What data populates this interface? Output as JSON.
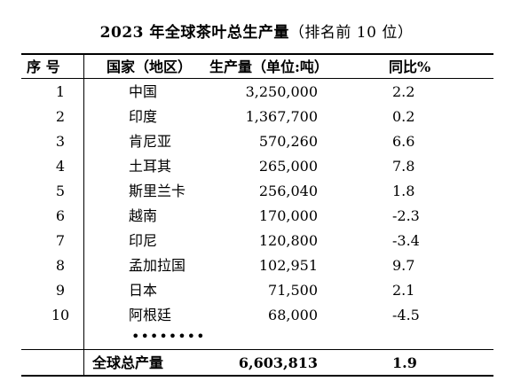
{
  "title": "2023 年全球茶叶总生产量",
  "subtitle": "（排名前 10 位）",
  "headers": {
    "no": "序 号",
    "country": "国家（地区）",
    "production": "生产量（单位:吨）",
    "yoy": "同比%"
  },
  "rows": [
    {
      "no": "1",
      "country": "中国",
      "production": "3,250,000",
      "yoy": "2.2"
    },
    {
      "no": "2",
      "country": "印度",
      "production": "1,367,700",
      "yoy": "0.2"
    },
    {
      "no": "3",
      "country": "肯尼亚",
      "production": "570,260",
      "yoy": "6.6"
    },
    {
      "no": "4",
      "country": "土耳其",
      "production": "265,000",
      "yoy": "7.8"
    },
    {
      "no": "5",
      "country": "斯里兰卡",
      "production": "256,040",
      "yoy": "1.8"
    },
    {
      "no": "6",
      "country": "越南",
      "production": "170,000",
      "yoy": "-2.3"
    },
    {
      "no": "7",
      "country": "印尼",
      "production": "120,800",
      "yoy": "-3.4"
    },
    {
      "no": "8",
      "country": "孟加拉国",
      "production": "102,951",
      "yoy": "9.7"
    },
    {
      "no": "9",
      "country": "日本",
      "production": "71,500",
      "yoy": "2.1"
    },
    {
      "no": "10",
      "country": "阿根廷",
      "production": "68,000",
      "yoy": "-4.5"
    }
  ],
  "ellipsis": "••••••••",
  "total": {
    "label": "全球总产量",
    "production": "6,603,813",
    "yoy": "1.9"
  }
}
